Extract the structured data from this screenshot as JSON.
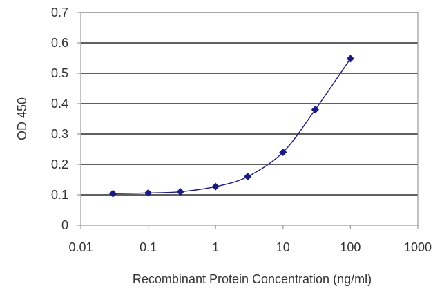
{
  "chart_data": {
    "type": "line",
    "title": "",
    "xlabel": "Recombinant Protein Concentration (ng/ml)",
    "ylabel": "OD 450",
    "x_scale": "log",
    "xlim": [
      0.01,
      1000
    ],
    "ylim": [
      0,
      0.7
    ],
    "x_ticks": [
      0.01,
      0.1,
      1,
      10,
      100,
      1000
    ],
    "x_tick_labels": [
      "0.01",
      "0.1",
      "1",
      "10",
      "100",
      "1000"
    ],
    "y_ticks": [
      0,
      0.1,
      0.2,
      0.3,
      0.4,
      0.5,
      0.6,
      0.7
    ],
    "y_tick_labels": [
      "0",
      "0.1",
      "0.2",
      "0.3",
      "0.4",
      "0.5",
      "0.6",
      "0.7"
    ],
    "grid": "horizontal",
    "series": [
      {
        "x": [
          0.03,
          0.1,
          0.3,
          1,
          3,
          10,
          30,
          100
        ],
        "y": [
          0.104,
          0.106,
          0.11,
          0.127,
          0.16,
          0.24,
          0.38,
          0.548
        ],
        "color": "#1a1a80",
        "marker": "diamond"
      }
    ],
    "colors": {
      "plot_background": "#ffffff",
      "gridline": "#000000",
      "frame": "#999999",
      "series": "#1a1a80"
    }
  }
}
